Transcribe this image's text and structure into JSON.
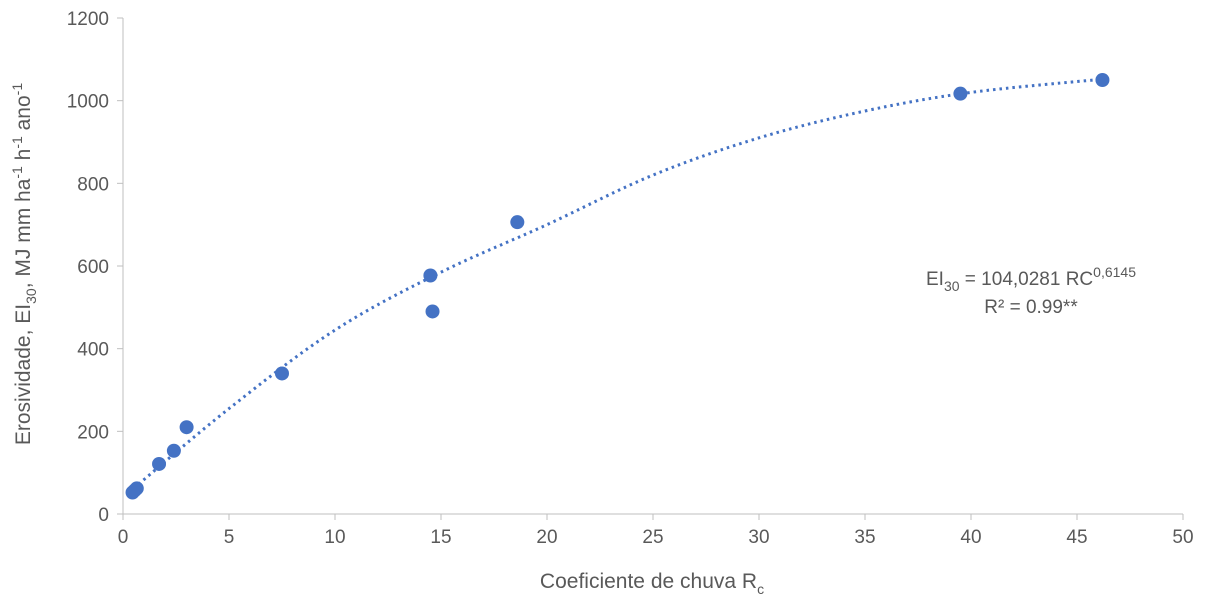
{
  "chart_data": {
    "type": "scatter",
    "xlabel": "Coeficiente de chuva R",
    "xlabel_sub": "c",
    "ylabel": {
      "part1": "Erosividade, EI",
      "sub30": "30",
      "part2": ", MJ mm ha",
      "sup1": "-1",
      "part3": " h",
      "sup2": "-1",
      "part4": " ano",
      "sup3": "-1"
    },
    "xlim": [
      0,
      50
    ],
    "ylim": [
      0,
      1200
    ],
    "x_ticks": [
      0,
      5,
      10,
      15,
      20,
      25,
      30,
      35,
      40,
      45,
      50
    ],
    "y_ticks": [
      0,
      200,
      400,
      600,
      800,
      1000,
      1200
    ],
    "points": [
      {
        "x": 0.45,
        "y": 52
      },
      {
        "x": 0.55,
        "y": 57
      },
      {
        "x": 0.65,
        "y": 62
      },
      {
        "x": 1.7,
        "y": 121
      },
      {
        "x": 2.4,
        "y": 153
      },
      {
        "x": 3.0,
        "y": 210
      },
      {
        "x": 7.5,
        "y": 340
      },
      {
        "x": 14.5,
        "y": 577
      },
      {
        "x": 14.6,
        "y": 490
      },
      {
        "x": 18.6,
        "y": 706
      },
      {
        "x": 39.5,
        "y": 1017
      },
      {
        "x": 46.2,
        "y": 1050
      }
    ],
    "trendline": {
      "style": "dotted",
      "x": [
        0.5,
        5,
        10,
        15,
        20,
        25,
        30,
        35,
        40,
        46.2
      ],
      "y": [
        62,
        255,
        445,
        585,
        700,
        820,
        910,
        975,
        1020,
        1052
      ]
    },
    "annotation": {
      "eq_left": "EI",
      "eq_sub": "30",
      "eq_mid": " = 104,0281 RC",
      "eq_sup": "0,6145",
      "r2": "R² = 0.99**"
    },
    "colors": {
      "marker": "#4472C4",
      "trendline": "#4472C4",
      "axis": "#bfbfbf",
      "text": "#595959"
    },
    "grid": false
  }
}
